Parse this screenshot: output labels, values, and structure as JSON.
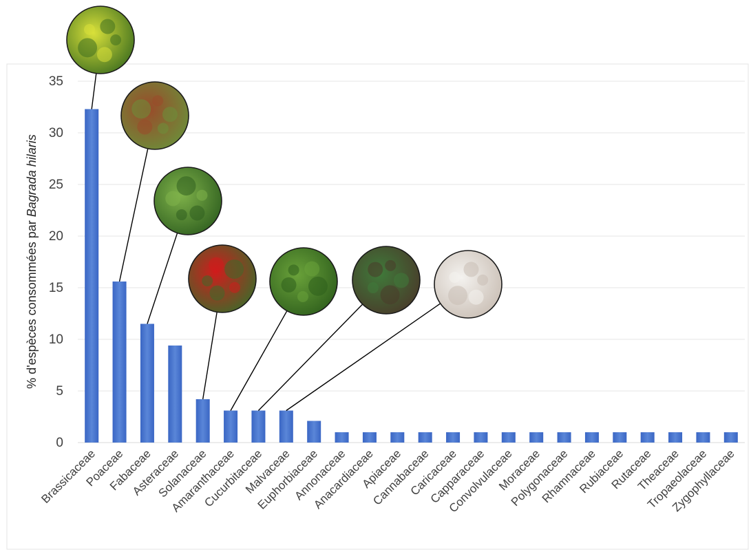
{
  "chart_data": {
    "type": "bar",
    "ylabel_prefix": "% d'espèces consommées par ",
    "ylabel_italic": "Bagrada hilaris",
    "xlabel": "",
    "ylim": [
      0,
      35
    ],
    "yticks": [
      "0",
      "5",
      "10",
      "15",
      "20",
      "25",
      "30",
      "35"
    ],
    "grid": true,
    "bar_color": "#4472C4",
    "categories": [
      "Brassicaceae",
      "Poaceae",
      "Fabaceae",
      "Asteraceae",
      "Solanaceae",
      "Amaranthaceae",
      "Cucurbitaceae",
      "Malvaceae",
      "Euphorbiaceae",
      "Annonaceae",
      "Anacardiaceae",
      "Apiaceae",
      "Cannabaceae",
      "Caricaceae",
      "Capparaceae",
      "Convolvulaceae",
      "Moraceae",
      "Polygonaceae",
      "Rhamnaceae",
      "Rubiaceae",
      "Rutaceae",
      "Theaceae",
      "Tropaeolaceae",
      "Zygophyllaceae"
    ],
    "values": [
      32.3,
      15.6,
      11.5,
      9.4,
      4.2,
      3.1,
      3.1,
      3.1,
      2.1,
      1.0,
      1.0,
      1.0,
      1.0,
      1.0,
      1.0,
      1.0,
      1.0,
      1.0,
      1.0,
      1.0,
      1.0,
      1.0,
      1.0,
      1.0
    ]
  },
  "callouts": [
    {
      "category": "Brassicaceae",
      "image": "mustard-flower-photo",
      "colors": [
        "#3f6f1f",
        "#d8e03a"
      ]
    },
    {
      "category": "Poaceae",
      "image": "sorghum-photo",
      "colors": [
        "#6b8f3a",
        "#9a4a2a"
      ]
    },
    {
      "category": "Fabaceae",
      "image": "green-bean-photo",
      "colors": [
        "#2f5f1f",
        "#7fb24a"
      ]
    },
    {
      "category": "Solanaceae",
      "image": "red-pepper-photo",
      "colors": [
        "#3e6a2a",
        "#d01c1c"
      ]
    },
    {
      "category": "Amaranthaceae",
      "image": "spinach-leaves-photo",
      "colors": [
        "#2e5e1c",
        "#6aa23a"
      ]
    },
    {
      "category": "Cucurbitaceae",
      "image": "watermelon-photo",
      "colors": [
        "#4a3a2a",
        "#3f7a3a"
      ]
    },
    {
      "category": "Malvaceae",
      "image": "cotton-boll-photo",
      "colors": [
        "#c9beb4",
        "#f4f2ef"
      ]
    }
  ]
}
